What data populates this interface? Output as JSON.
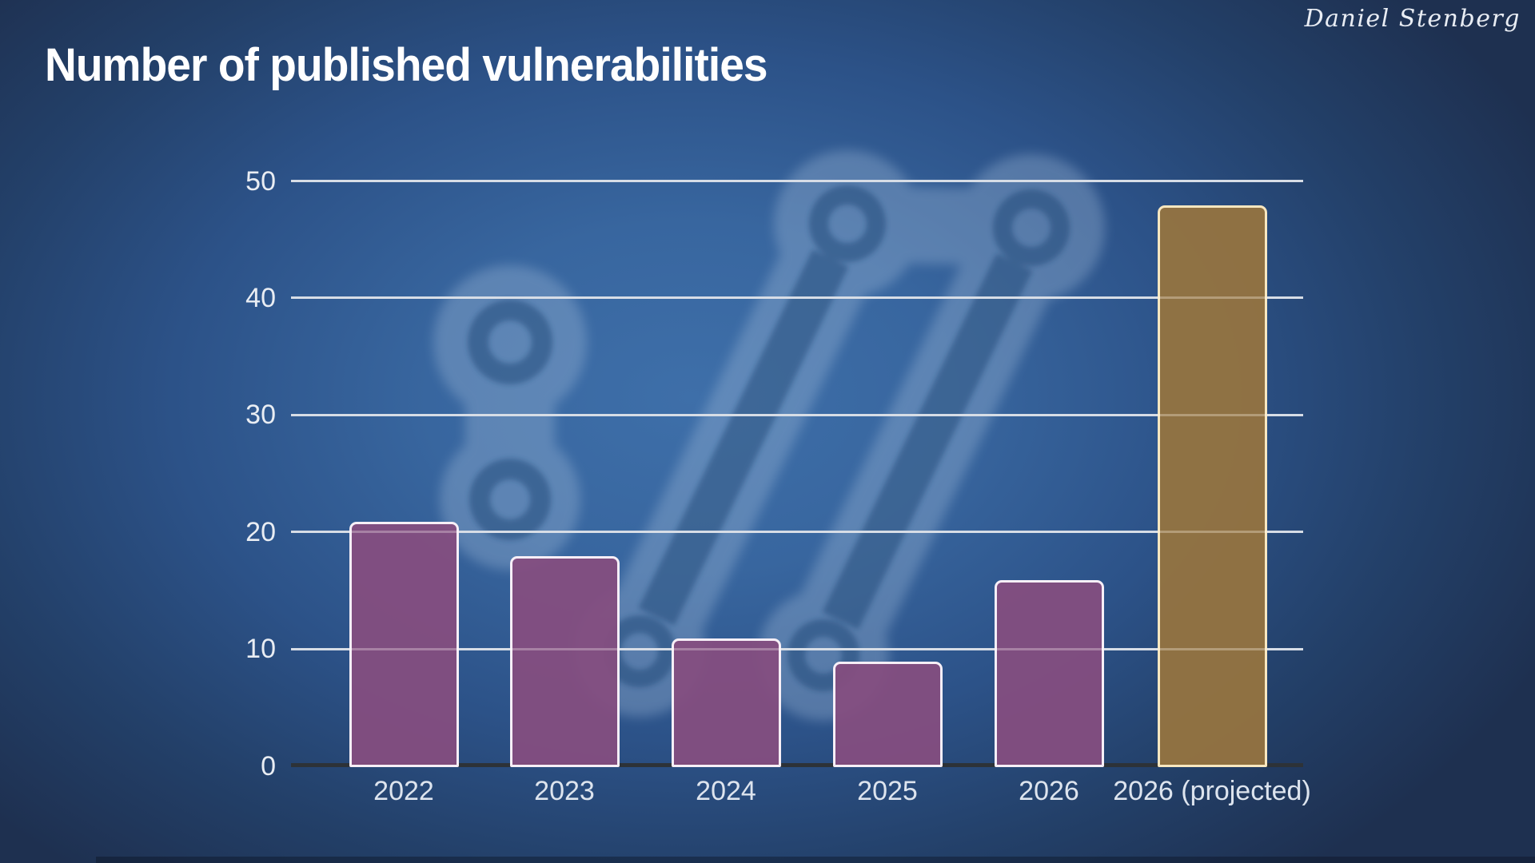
{
  "slide": {
    "title": "Number of published vulnerabilities",
    "author": "Daniel Stenberg",
    "watermark_icon": "curl-logo-watermark"
  },
  "chart_data": {
    "type": "bar",
    "title": "Number of published vulnerabilities",
    "categories": [
      "2022",
      "2023",
      "2024",
      "2025",
      "2026",
      "2026 (projected)"
    ],
    "values": [
      21,
      18,
      11,
      9,
      16,
      48
    ],
    "bar_styles": [
      "purple",
      "purple",
      "purple",
      "purple",
      "purple",
      "gold"
    ],
    "y_ticks": [
      0,
      10,
      20,
      30,
      40,
      50
    ],
    "ylim": [
      0,
      50
    ],
    "xlabel": "",
    "ylabel": "",
    "grid": "horizontal",
    "legend": "none",
    "colors": {
      "background_outer": "#1E3050",
      "background_center": "#3E6FA9",
      "bar_purple": "#854E80",
      "bar_purple_border": "#F7EFF7",
      "bar_gold": "#967440",
      "bar_gold_border": "#F8E7C0",
      "gridline": "#C9D2DD",
      "axis_line": "#2D3238",
      "tick_text": "#E9EDF3",
      "title_text": "#FFFFFF",
      "watermark_halo": "#A8C1DE",
      "watermark_dark": "#16406F"
    }
  }
}
